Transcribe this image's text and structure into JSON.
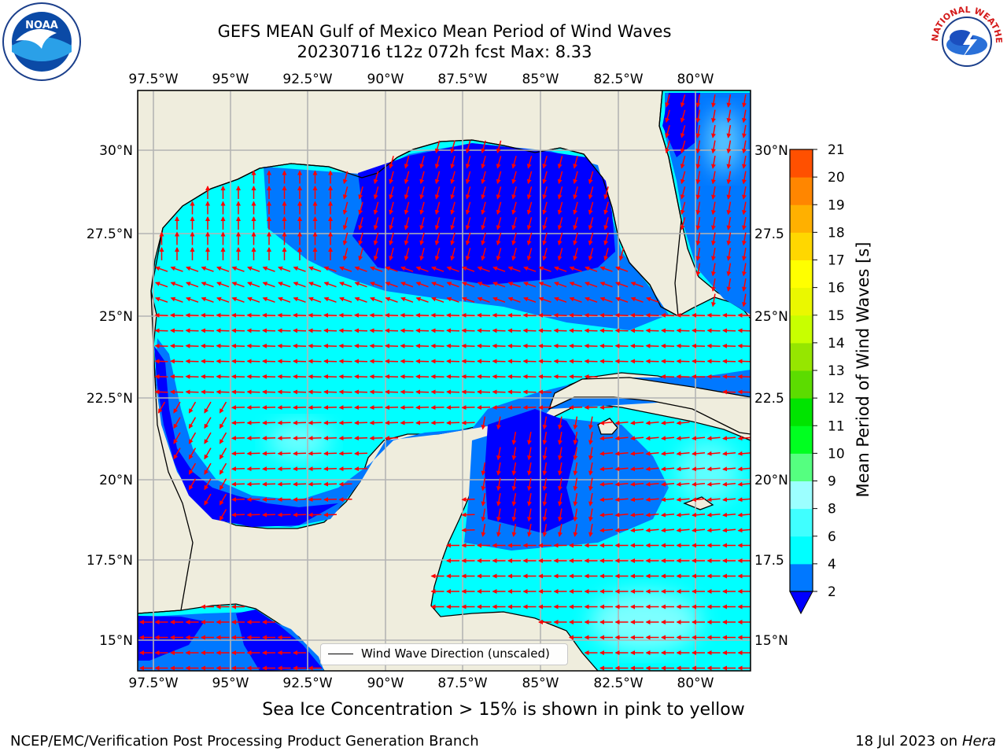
{
  "title": {
    "line1": "GEFS MEAN Gulf of Mexico Mean Period of Wind Waves",
    "line2": "20230716 t12z 072h fcst   Max: 8.33"
  },
  "map": {
    "lon_ticks": [
      "97.5°W",
      "95°W",
      "92.5°W",
      "90°W",
      "87.5°W",
      "85°W",
      "82.5°W",
      "80°W"
    ],
    "lat_ticks_left": [
      "30°N",
      "27.5°N",
      "25°N",
      "22.5°N",
      "20°N",
      "17.5°N",
      "15°N"
    ],
    "lat_ticks_right": [
      "30°N",
      "27.5",
      "25°N",
      "22.5",
      "20°N",
      "17.5",
      "15°N"
    ],
    "land_color": "#efeddd",
    "ocean_base_color": "#00ffff",
    "arrow_color": "#ff0000",
    "legend_label": "Wind Wave Direction (unscaled)"
  },
  "colorbar": {
    "label": "Mean Period of Wind Waves [s]",
    "tick_labels": [
      "2",
      "4",
      "6",
      "8",
      "9",
      "10",
      "11",
      "12",
      "13",
      "14",
      "15",
      "16",
      "17",
      "18",
      "19",
      "20",
      "21"
    ],
    "colors": [
      "#0078ff",
      "#00ffff",
      "#40ffff",
      "#9cffff",
      "#55ff80",
      "#00ff20",
      "#00e400",
      "#5cdc00",
      "#96e600",
      "#c8ff00",
      "#eaf800",
      "#ffff00",
      "#ffd700",
      "#ffb000",
      "#ff8600",
      "#ff5000",
      "#ff2000",
      "#ff0000"
    ],
    "under_color": "#0000ff"
  },
  "footer": {
    "ice_note": "Sea Ice Concentration > 15% is shown in pink to yellow",
    "org": "NCEP/EMC/Verification Post Processing Product Generation Branch",
    "date": "18 Jul 2023 on ",
    "machine": "Hera"
  },
  "logos": {
    "noaa": "NOAA",
    "nws": "NATIONAL WEATHER SERVICE"
  }
}
